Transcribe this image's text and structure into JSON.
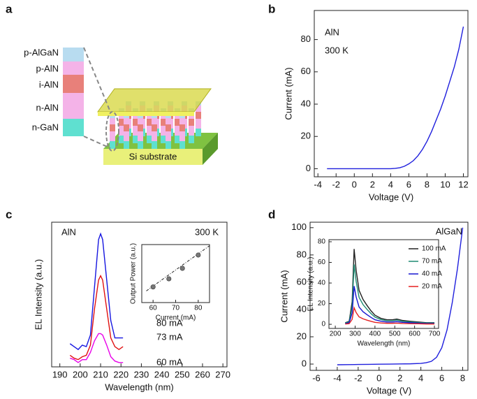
{
  "panel_labels": [
    "a",
    "b",
    "c",
    "d"
  ],
  "diagram": {
    "layers": [
      "p-AlGaN",
      "p-AlN",
      "i-AlN",
      "n-AlN",
      "n-GaN"
    ],
    "substrate_label": "Si substrate"
  },
  "chart_data": [
    {
      "type": "line",
      "annotations": [
        "AlN",
        "300 K"
      ],
      "xlabel": "Voltage (V)",
      "ylabel": "Current (mA)",
      "x": [
        -3,
        -2,
        -1,
        0,
        1,
        2,
        3,
        4,
        4.5,
        5,
        5.5,
        6,
        6.5,
        7,
        7.5,
        8,
        8.5,
        9,
        9.5,
        10,
        10.5,
        11,
        11.5,
        12
      ],
      "values": [
        0,
        0,
        0,
        0,
        0,
        0,
        0,
        0,
        0.2,
        0.6,
        1.5,
        3,
        5,
        8,
        12,
        17,
        23,
        30,
        37,
        45,
        54,
        63,
        74,
        88
      ],
      "color": "#1f1fdd",
      "xlim": [
        -4.4,
        12.5
      ],
      "ylim": [
        -5,
        98
      ],
      "xticks": [
        -4,
        -2,
        0,
        2,
        4,
        6,
        8,
        10,
        12
      ],
      "yticks": [
        0,
        20,
        40,
        60,
        80
      ]
    },
    {
      "type": "line",
      "annotations": [
        "AlN",
        "300 K"
      ],
      "xlabel": "Wavelength (nm)",
      "ylabel": "EL Intensity (a.u.)",
      "x": [
        195,
        197,
        199,
        201,
        203,
        205,
        207,
        209,
        210,
        211,
        213,
        215,
        217,
        219,
        221
      ],
      "series": [
        {
          "name": "80 mA",
          "color": "#1515e0",
          "values": [
            0.16,
            0.14,
            0.12,
            0.15,
            0.14,
            0.22,
            0.55,
            0.88,
            0.92,
            0.88,
            0.6,
            0.32,
            0.2,
            0.2,
            0.2
          ]
        },
        {
          "name": "73 mA",
          "color": "#e01010",
          "values": [
            0.08,
            0.06,
            0.05,
            0.07,
            0.08,
            0.15,
            0.4,
            0.6,
            0.63,
            0.6,
            0.4,
            0.2,
            0.14,
            0.12,
            0.14
          ]
        },
        {
          "name": "60 mA",
          "color": "#e800e8",
          "values": [
            0.06,
            0.05,
            0.03,
            0.05,
            0.05,
            0.1,
            0.18,
            0.23,
            0.23,
            0.22,
            0.15,
            0.07,
            0.04,
            0.03,
            0.03
          ]
        }
      ],
      "xlim": [
        186,
        272
      ],
      "ylim": [
        0,
        1
      ],
      "xticks": [
        190,
        200,
        210,
        220,
        230,
        240,
        250,
        260,
        270
      ]
    },
    {
      "type": "scatter",
      "xlabel": "Current (mA)",
      "ylabel": "Output Power (a.u.)",
      "x": [
        60,
        67,
        73,
        80
      ],
      "values": [
        0.27,
        0.41,
        0.59,
        0.82
      ],
      "color": "#777777",
      "fit": {
        "x": [
          57,
          85
        ],
        "values": [
          0.2,
          0.98
        ]
      },
      "xlim": [
        55,
        85
      ],
      "ylim": [
        0,
        1
      ],
      "xticks": [
        60,
        70,
        80
      ]
    },
    {
      "type": "line",
      "annotations": [
        "AlGaN"
      ],
      "xlabel": "Voltage (V)",
      "ylabel": "Current (mA)",
      "x": [
        -4,
        -3,
        -2,
        -1,
        0,
        1,
        2,
        3,
        4,
        4.5,
        5,
        5.5,
        6,
        6.5,
        7,
        7.5,
        8
      ],
      "values": [
        -0.5,
        -0.4,
        -0.3,
        -0.2,
        -0.1,
        0,
        0.1,
        0.2,
        0.5,
        1,
        2,
        5,
        12,
        25,
        45,
        70,
        100
      ],
      "color": "#1f1fdd",
      "xlim": [
        -6.6,
        8.5
      ],
      "ylim": [
        -4.6,
        104
      ],
      "xticks": [
        -6,
        -4,
        -2,
        0,
        2,
        4,
        6,
        8
      ],
      "yticks": [
        0,
        20,
        40,
        60,
        80,
        100
      ]
    },
    {
      "type": "line",
      "xlabel": "Wavelength (nm)",
      "ylabel": "EL Intensity (a.u.)",
      "x": [
        250,
        270,
        285,
        295,
        305,
        320,
        340,
        360,
        380,
        400,
        430,
        460,
        490,
        510,
        540,
        580,
        620,
        660,
        700
      ],
      "series": [
        {
          "name": "100 mA",
          "color": "#222222",
          "values": [
            1.5,
            2.9,
            21.9,
            73,
            52.6,
            32.9,
            24.1,
            18.3,
            13.1,
            8.8,
            5.8,
            4.4,
            4.4,
            5.1,
            3.7,
            2.9,
            2.2,
            1.5,
            1.5
          ]
        },
        {
          "name": "70 mA",
          "color": "#1d8a72",
          "values": [
            1.2,
            2.3,
            17.4,
            58,
            41.8,
            26.1,
            19.1,
            14.5,
            10.4,
            7,
            4.6,
            3.5,
            3.5,
            4.1,
            2.9,
            2.3,
            1.7,
            1.2,
            1.2
          ]
        },
        {
          "name": "40 mA",
          "color": "#1515d0",
          "values": [
            0.7,
            1.5,
            11.1,
            37,
            26.6,
            16.7,
            12.2,
            9.3,
            6.7,
            4.4,
            3,
            2.2,
            2.2,
            2.6,
            1.9,
            1.5,
            1.1,
            0.7,
            0.7
          ]
        },
        {
          "name": "20 mA",
          "color": "#e52020",
          "values": [
            0.3,
            0.6,
            4.8,
            16,
            11.5,
            7.2,
            5.3,
            4,
            2.9,
            1.9,
            1.3,
            1,
            1,
            1.1,
            0.8,
            0.6,
            0.5,
            0.3,
            0.3
          ]
        }
      ],
      "xlim": [
        168,
        721
      ],
      "ylim": [
        -4,
        82
      ],
      "xticks": [
        200,
        300,
        400,
        500,
        600,
        700
      ],
      "yticks": [
        0,
        20,
        40,
        60,
        80
      ]
    }
  ]
}
